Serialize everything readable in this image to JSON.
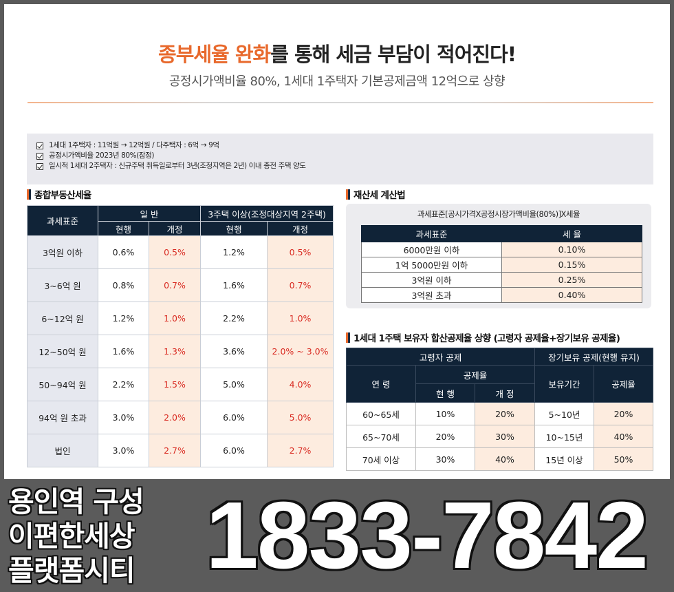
{
  "header": {
    "title_highlight": "종부세율 완화",
    "title_rest": "를 통해 세금 부담이 적어진다!",
    "subtitle": "공정시가액비율 80%, 1세대 1주택자 기본공제금액 12억으로 상향"
  },
  "notices": [
    "1세대 1주택자 : 11억원 → 12억원 / 다주택자 : 6억 → 9억",
    "공정시가액비율 2023년 80%(잠정)",
    "일시적 1세대 2주택자 : 신규주택 취득일로부터 3년(조정지역은 2년) 이내 종전 주택 양도"
  ],
  "comprehensive_tax": {
    "section_title": "종합부동산세율",
    "header_base": "과세표준",
    "header_general": "일 반",
    "header_multi": "3주택 이상(조정대상지역 2주택)",
    "header_current": "현행",
    "header_revised": "개정",
    "rows": [
      {
        "label": "3억원 이하",
        "gen_cur": "0.6%",
        "gen_rev": "0.5%",
        "multi_cur": "1.2%",
        "multi_rev": "0.5%"
      },
      {
        "label": "3~6억 원",
        "gen_cur": "0.8%",
        "gen_rev": "0.7%",
        "multi_cur": "1.6%",
        "multi_rev": "0.7%"
      },
      {
        "label": "6~12억 원",
        "gen_cur": "1.2%",
        "gen_rev": "1.0%",
        "multi_cur": "2.2%",
        "multi_rev": "1.0%"
      },
      {
        "label": "12~50억 원",
        "gen_cur": "1.6%",
        "gen_rev": "1.3%",
        "multi_cur": "3.6%",
        "multi_rev": "2.0% ~ 3.0%"
      },
      {
        "label": "50~94억 원",
        "gen_cur": "2.2%",
        "gen_rev": "1.5%",
        "multi_cur": "5.0%",
        "multi_rev": "4.0%"
      },
      {
        "label": "94억 원 초과",
        "gen_cur": "3.0%",
        "gen_rev": "2.0%",
        "multi_cur": "6.0%",
        "multi_rev": "5.0%"
      },
      {
        "label": "법인",
        "gen_cur": "3.0%",
        "gen_rev": "2.7%",
        "multi_cur": "6.0%",
        "multi_rev": "2.7%"
      }
    ]
  },
  "property_tax": {
    "section_title": "재산세 계산법",
    "formula": "과세표준[공시가격X공정시장가액비율(80%)]X세율",
    "header_base": "과세표준",
    "header_rate": "세 율",
    "rows": [
      {
        "base": "6000만원 이하",
        "rate": "0.10%"
      },
      {
        "base": "1억 5000만원 이하",
        "rate": "0.15%"
      },
      {
        "base": "3억원 이하",
        "rate": "0.25%"
      },
      {
        "base": "3억원 초과",
        "rate": "0.40%"
      }
    ]
  },
  "deduction": {
    "section_title": "1세대 1주택 보유자 합산공제율 상향 (고령자 공제율+장기보유 공제율)",
    "header_elderly": "고령자 공제",
    "header_longterm": "장기보유 공제(현행 유지)",
    "header_age": "연 령",
    "header_rate": "공제율",
    "header_current": "현 행",
    "header_revised": "개 정",
    "header_period": "보유기간",
    "header_rate2": "공제율",
    "rows": [
      {
        "age": "60~65세",
        "cur": "10%",
        "rev": "20%",
        "period": "5~10년",
        "rate": "20%"
      },
      {
        "age": "65~70세",
        "cur": "20%",
        "rev": "30%",
        "period": "10~15년",
        "rate": "40%"
      },
      {
        "age": "70세 이상",
        "cur": "30%",
        "rev": "40%",
        "period": "15년 이상",
        "rate": "50%"
      }
    ]
  },
  "footer": {
    "brand_lines": [
      "용인역 구성",
      "이편한세상",
      "플랫폼시티"
    ],
    "phone": "1833-7842"
  }
}
